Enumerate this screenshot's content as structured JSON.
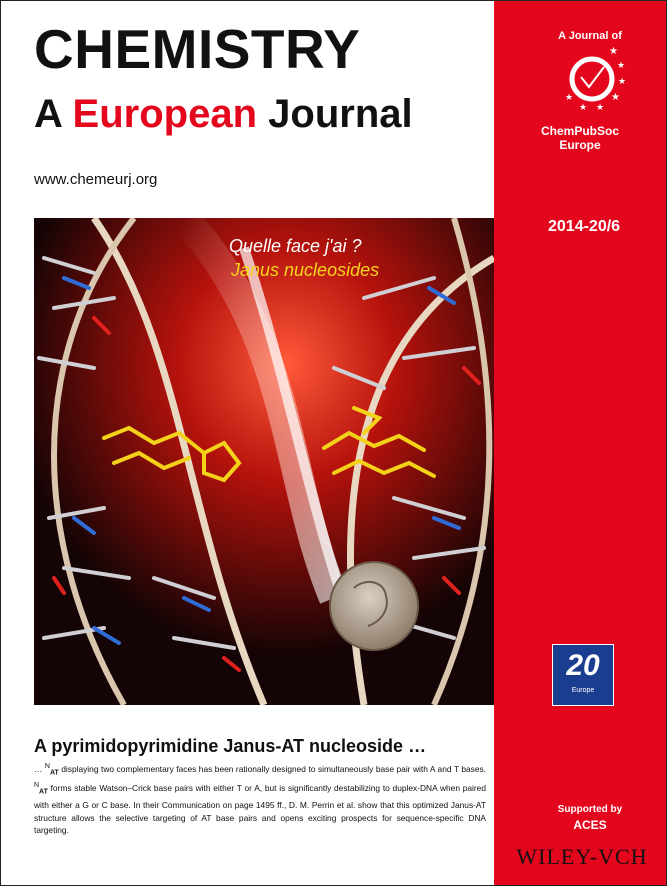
{
  "masthead": {
    "title_line1": "CHEMISTRY",
    "title_line2_prefix": "A",
    "title_line2_red": "European",
    "title_line2_suffix": "Journal",
    "url": "www.chemeurj.org"
  },
  "sidebar": {
    "journal_of": "A Journal of",
    "society_line1": "ChemPubSoc",
    "society_line2": "Europe",
    "issue": "2014-20/6",
    "anniversary_number": "20",
    "anniversary_sub": "Europe",
    "supported_by": "Supported by",
    "supporter": "ACES",
    "publisher": "WILEY-VCH"
  },
  "cover_art": {
    "quote_line1": "Quelle face j'ai ?",
    "quote_line2": "Janus nucleosides"
  },
  "article": {
    "headline": "A pyrimidopyrimidine Janus-AT nucleoside …",
    "abstract_prefix": "… ",
    "sup1": "N",
    "sub1": "AT",
    "abstract_part1": " displaying two complementary faces has been rationally designed to simultaneously base pair with A and T bases. ",
    "sup2": "N",
    "sub2": "AT",
    "abstract_part2": " forms stable Watson–Crick base pairs with either T or A, but is significantly destabilizing to duplex-DNA when paired with either a G or C base. In their Communication on page 1495 ff., D. M. Perrin et al. show that this optimized Janus-AT structure allows the selective targeting of AT base pairs and opens exciting prospects for sequence-specific DNA targeting."
  },
  "colors": {
    "brand_red": "#e3061d",
    "dark": "#111111",
    "highlight_yellow": "#f6d31c"
  }
}
